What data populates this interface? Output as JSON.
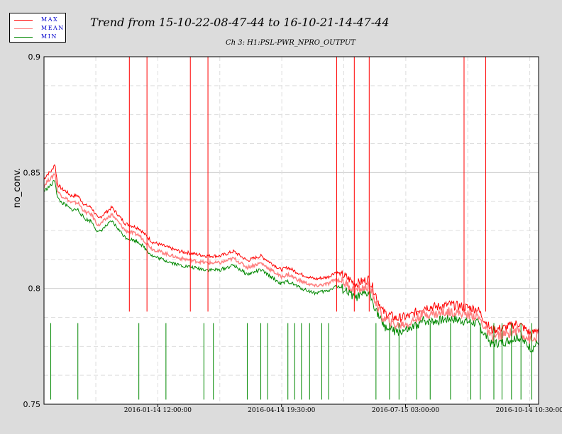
{
  "chart_data": {
    "type": "line",
    "title": "Trend from 15-10-22-08-47-44 to 16-10-21-14-47-44",
    "subtitle": "Ch 3: H1:PSL-PWR_NPRO_OUTPUT",
    "xlabel": "",
    "ylabel": "no_conv.",
    "ylim": [
      0.75,
      0.9
    ],
    "yticks": [
      "0.75",
      "0.8",
      "0.85",
      "0.9"
    ],
    "xticks": [
      "2016-01-14 12:00:00",
      "2016-04-14 19:30:00",
      "2016-07-15 03:00:00",
      "2016-10-14 10:30:00"
    ],
    "grid": true,
    "legend_position": "top-left",
    "x": [
      0,
      2,
      4,
      6,
      8,
      10,
      13,
      16,
      20,
      25,
      30,
      35,
      40,
      50,
      60,
      70,
      80,
      90,
      100,
      110,
      120,
      130,
      140,
      150,
      160,
      170,
      175,
      180,
      190,
      200,
      210,
      215,
      220,
      230,
      240,
      250,
      260,
      270,
      280,
      290,
      300,
      310,
      320,
      330,
      340,
      350,
      360,
      365
    ],
    "series": [
      {
        "name": "MAX",
        "color": "#ff0000",
        "values": [
          0.847,
          0.849,
          0.85,
          0.851,
          0.854,
          0.845,
          0.843,
          0.842,
          0.84,
          0.84,
          0.836,
          0.835,
          0.83,
          0.835,
          0.828,
          0.826,
          0.82,
          0.818,
          0.816,
          0.815,
          0.814,
          0.814,
          0.816,
          0.812,
          0.814,
          0.81,
          0.808,
          0.809,
          0.806,
          0.804,
          0.805,
          0.807,
          0.806,
          0.802,
          0.804,
          0.79,
          0.787,
          0.788,
          0.792,
          0.792,
          0.793,
          0.792,
          0.791,
          0.782,
          0.783,
          0.785,
          0.78,
          0.783
        ]
      },
      {
        "name": "MEAN",
        "color": "#ff8080",
        "values": [
          0.844,
          0.846,
          0.847,
          0.848,
          0.85,
          0.842,
          0.84,
          0.839,
          0.837,
          0.837,
          0.833,
          0.832,
          0.827,
          0.832,
          0.825,
          0.823,
          0.817,
          0.815,
          0.813,
          0.812,
          0.811,
          0.811,
          0.813,
          0.809,
          0.811,
          0.807,
          0.805,
          0.806,
          0.803,
          0.801,
          0.802,
          0.804,
          0.803,
          0.799,
          0.801,
          0.787,
          0.784,
          0.785,
          0.789,
          0.789,
          0.79,
          0.789,
          0.788,
          0.779,
          0.78,
          0.782,
          0.777,
          0.78
        ]
      },
      {
        "name": "MIN",
        "color": "#008800",
        "values": [
          0.842,
          0.843,
          0.844,
          0.845,
          0.847,
          0.839,
          0.837,
          0.836,
          0.834,
          0.834,
          0.83,
          0.829,
          0.824,
          0.829,
          0.822,
          0.82,
          0.814,
          0.812,
          0.81,
          0.809,
          0.808,
          0.808,
          0.81,
          0.806,
          0.808,
          0.804,
          0.802,
          0.803,
          0.8,
          0.798,
          0.799,
          0.801,
          0.8,
          0.796,
          0.798,
          0.784,
          0.781,
          0.782,
          0.786,
          0.786,
          0.787,
          0.786,
          0.785,
          0.776,
          0.777,
          0.779,
          0.774,
          0.777
        ]
      }
    ]
  }
}
